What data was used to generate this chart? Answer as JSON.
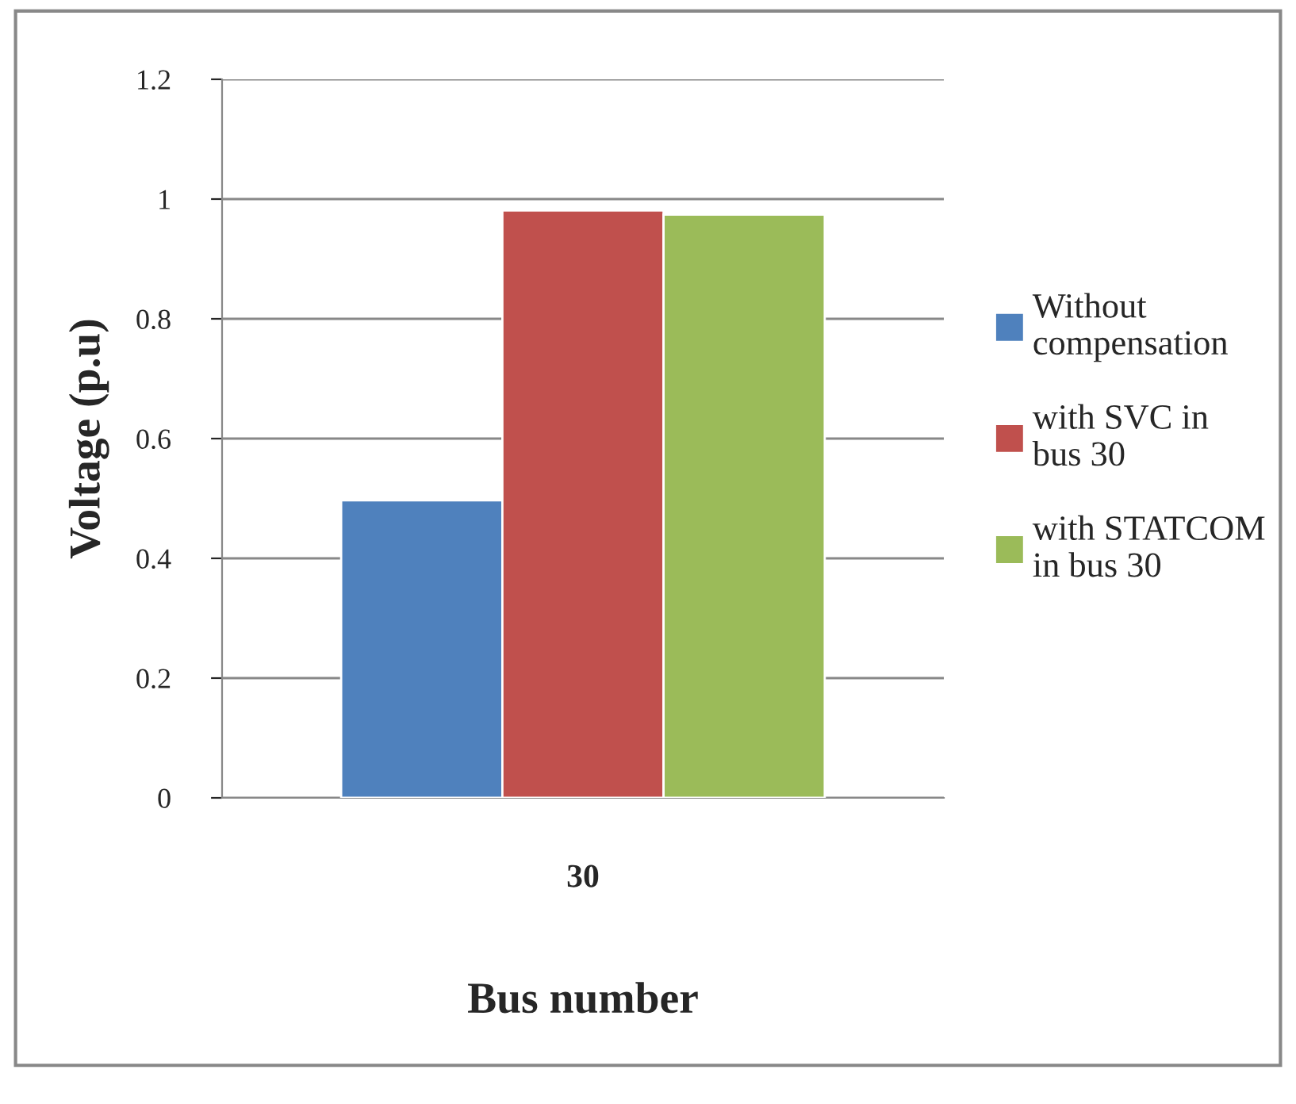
{
  "chart_data": {
    "type": "bar",
    "xlabel": "Bus number",
    "ylabel": "Voltage (p.u)",
    "categories": [
      "30"
    ],
    "series": [
      {
        "name": "Without compensation",
        "color": "#4f81bd",
        "values": [
          0.497
        ]
      },
      {
        "name": "with SVC in bus 30",
        "color": "#c0504d",
        "values": [
          0.981
        ]
      },
      {
        "name": "with STATCOM in bus 30",
        "color": "#9bbb59",
        "values": [
          0.974
        ]
      }
    ],
    "ylim": [
      0,
      1.2
    ],
    "yticks": [
      0,
      0.2,
      0.4,
      0.6,
      0.8,
      1,
      1.2
    ],
    "grid": "y",
    "legend": "right"
  }
}
